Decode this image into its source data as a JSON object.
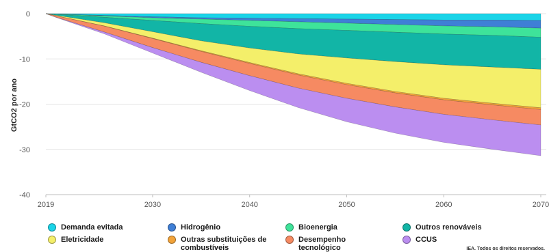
{
  "chart_data": {
    "type": "area",
    "title": "",
    "xlabel": "",
    "ylabel": "GtCO2 por ano",
    "xlim": [
      2019,
      2070
    ],
    "ylim": [
      -40,
      0
    ],
    "x_ticks": [
      "2019",
      "2030",
      "2040",
      "2050",
      "2060",
      "2070"
    ],
    "y_ticks": [
      "0",
      "-10",
      "-20",
      "-30",
      "-40"
    ],
    "grid": true,
    "legend_position": "bottom",
    "x": [
      2019,
      2020,
      2025,
      2030,
      2035,
      2040,
      2045,
      2050,
      2055,
      2060,
      2065,
      2070
    ],
    "series": [
      {
        "name": "Demanda evitada",
        "color": "#1ad4e8",
        "values": [
          0,
          -0.1,
          -0.4,
          -0.7,
          -0.9,
          -1.0,
          -1.1,
          -1.2,
          -1.3,
          -1.4,
          -1.4,
          -1.5
        ]
      },
      {
        "name": "Hidrogênio",
        "color": "#3f7fd6",
        "values": [
          0,
          0,
          -0.1,
          -0.2,
          -0.3,
          -0.5,
          -0.7,
          -0.9,
          -1.1,
          -1.3,
          -1.5,
          -1.7
        ]
      },
      {
        "name": "Bioenergia",
        "color": "#3ee39a",
        "values": [
          0,
          -0.05,
          -0.3,
          -0.6,
          -1.0,
          -1.3,
          -1.5,
          -1.6,
          -1.7,
          -1.8,
          -1.9,
          -2.0
        ]
      },
      {
        "name": "Outros renováveis",
        "color": "#12b5a6",
        "values": [
          0,
          -0.2,
          -1.2,
          -2.5,
          -3.8,
          -4.8,
          -5.6,
          -6.1,
          -6.5,
          -6.8,
          -7.0,
          -7.1
        ]
      },
      {
        "name": "Eletricidade",
        "color": "#f4ef6a",
        "values": [
          0,
          -0.1,
          -0.7,
          -1.4,
          -2.2,
          -3.2,
          -4.4,
          -5.6,
          -6.6,
          -7.4,
          -8.0,
          -8.5
        ]
      },
      {
        "name": "Outras substituições de combustíveis",
        "color": "#f2a33a",
        "values": [
          0,
          0,
          -0.05,
          -0.1,
          -0.15,
          -0.2,
          -0.25,
          -0.3,
          -0.32,
          -0.35,
          -0.37,
          -0.4
        ]
      },
      {
        "name": "Desempenho tecnológico",
        "color": "#f68a62",
        "values": [
          0,
          -0.3,
          -1.3,
          -2.0,
          -2.4,
          -2.7,
          -2.9,
          -3.0,
          -3.1,
          -3.2,
          -3.3,
          -3.4
        ]
      },
      {
        "name": "CCUS",
        "color": "#bb8ef0",
        "values": [
          0,
          -0.05,
          -0.4,
          -1.2,
          -2.2,
          -3.3,
          -4.3,
          -5.2,
          -5.8,
          -6.2,
          -6.5,
          -6.8
        ]
      }
    ]
  },
  "legend": {
    "items": [
      {
        "label": "Demanda evitada",
        "color": "#1ad4e8"
      },
      {
        "label": "Hidrogênio",
        "color": "#3f7fd6"
      },
      {
        "label": "Bioenergia",
        "color": "#3ee39a"
      },
      {
        "label": "Outros renováveis",
        "color": "#12b5a6"
      },
      {
        "label": "Eletricidade",
        "color": "#f4ef6a"
      },
      {
        "label": "Outras substituições de combustíveis",
        "color": "#f2a33a"
      },
      {
        "label": "Desempenho tecnológico",
        "color": "#f68a62"
      },
      {
        "label": "CCUS",
        "color": "#bb8ef0"
      }
    ]
  },
  "credit": "IEA. Todos os direitos reservados."
}
